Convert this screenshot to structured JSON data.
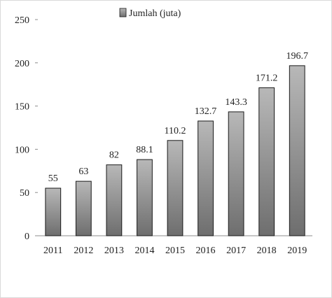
{
  "chart_data": {
    "type": "bar",
    "title": "",
    "xlabel": "",
    "ylabel": "",
    "categories": [
      "2011",
      "2012",
      "2013",
      "2014",
      "2015",
      "2016",
      "2017",
      "2018",
      "2019"
    ],
    "series": [
      {
        "name": "Jumlah (juta)",
        "values": [
          55,
          63,
          82,
          88.1,
          110.2,
          132.7,
          143.3,
          171.2,
          196.7
        ],
        "value_labels": [
          "55",
          "63",
          "82",
          "88.1",
          "110.2",
          "132.7",
          "143.3",
          "171.2",
          "196.7"
        ]
      }
    ],
    "ylim": [
      0,
      250
    ],
    "yticks": [
      0,
      50,
      100,
      150,
      200,
      250
    ],
    "grid": false,
    "legend": "top-center",
    "colors": {
      "bar_top": "#b8b8b8",
      "bar_bottom": "#6e6e6e",
      "bar_stroke": "#1a1a1a",
      "axis": "#8c8c8c"
    }
  }
}
